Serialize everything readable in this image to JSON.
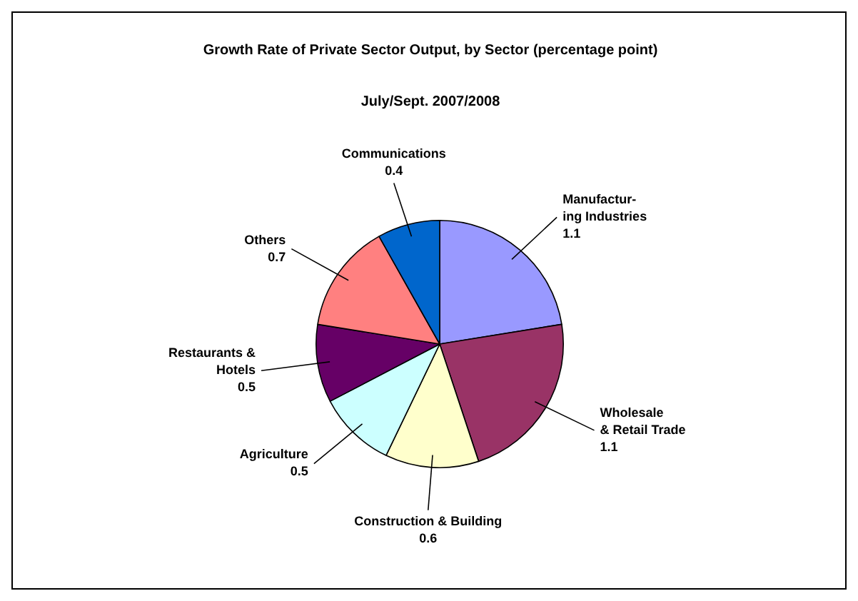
{
  "chart_data": {
    "type": "pie",
    "title": "Growth Rate of Private Sector Output, by Sector (percentage point)",
    "subtitle": "July/Sept. 2007/2008",
    "categories": [
      "Manufactur-\ning Industries",
      "Wholesale\n& Retail Trade",
      "Construction & Building",
      "Agriculture",
      "Restaurants &\nHotels",
      "Others",
      "Communications"
    ],
    "values": [
      1.1,
      1.1,
      0.6,
      0.5,
      0.5,
      0.7,
      0.4
    ],
    "colors": [
      "#9999ff",
      "#993366",
      "#ffffcc",
      "#ccffff",
      "#660066",
      "#ff8080",
      "#0066cc"
    ],
    "data_labels": true,
    "legend": false
  }
}
